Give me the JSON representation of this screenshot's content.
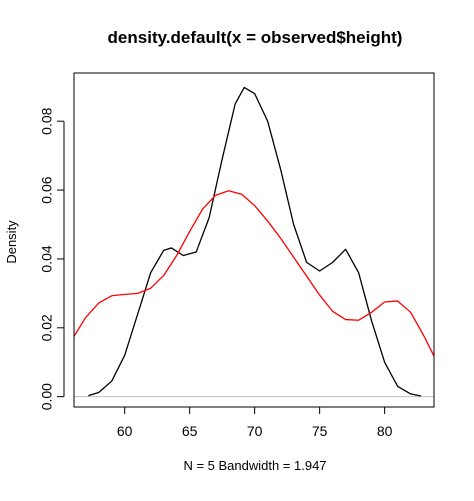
{
  "chart_data": {
    "type": "line",
    "title": "density.default(x = observed$height)",
    "xlabel": "N = 5   Bandwidth = 1.947",
    "ylabel": "Density",
    "xlim": [
      56.1,
      83.8
    ],
    "ylim": [
      -0.003,
      0.094
    ],
    "x_ticks": [
      60,
      65,
      70,
      75,
      80
    ],
    "x_tick_labels": [
      "60",
      "65",
      "70",
      "75",
      "80"
    ],
    "y_ticks": [
      0.0,
      0.02,
      0.04,
      0.06,
      0.08
    ],
    "y_tick_labels": [
      "0.00",
      "0.02",
      "0.04",
      "0.06",
      "0.08"
    ],
    "grid": false,
    "reference_line_y": 0,
    "series": [
      {
        "color": "#000000",
        "x": [
          57.2,
          58.0,
          59.0,
          60.0,
          61.0,
          62.0,
          63.0,
          63.6,
          64.5,
          65.5,
          66.5,
          67.5,
          68.5,
          69.2,
          70.0,
          71.0,
          72.0,
          73.0,
          74.0,
          75.0,
          76.0,
          77.0,
          78.0,
          79.0,
          80.0,
          81.0,
          82.0,
          82.8
        ],
        "y": [
          0.0003,
          0.0012,
          0.0045,
          0.012,
          0.024,
          0.036,
          0.0425,
          0.0432,
          0.041,
          0.042,
          0.052,
          0.069,
          0.085,
          0.0898,
          0.088,
          0.08,
          0.066,
          0.05,
          0.039,
          0.0365,
          0.039,
          0.0428,
          0.036,
          0.022,
          0.01,
          0.003,
          0.0008,
          0.0002
        ]
      },
      {
        "color": "#ff0000",
        "x": [
          56.1,
          57.0,
          58.0,
          59.0,
          60.0,
          61.0,
          62.0,
          63.0,
          64.0,
          65.0,
          66.0,
          67.0,
          68.0,
          69.0,
          70.0,
          71.0,
          72.0,
          73.0,
          74.0,
          75.0,
          76.0,
          77.0,
          78.0,
          79.0,
          80.0,
          81.0,
          82.0,
          83.0,
          83.8
        ],
        "y": [
          0.0175,
          0.023,
          0.0272,
          0.0293,
          0.0297,
          0.03,
          0.0315,
          0.0352,
          0.041,
          0.048,
          0.0545,
          0.0585,
          0.0598,
          0.0588,
          0.0555,
          0.051,
          0.046,
          0.0405,
          0.035,
          0.0295,
          0.0248,
          0.0224,
          0.0222,
          0.0245,
          0.0275,
          0.0278,
          0.0245,
          0.0178,
          0.0118
        ]
      }
    ]
  }
}
